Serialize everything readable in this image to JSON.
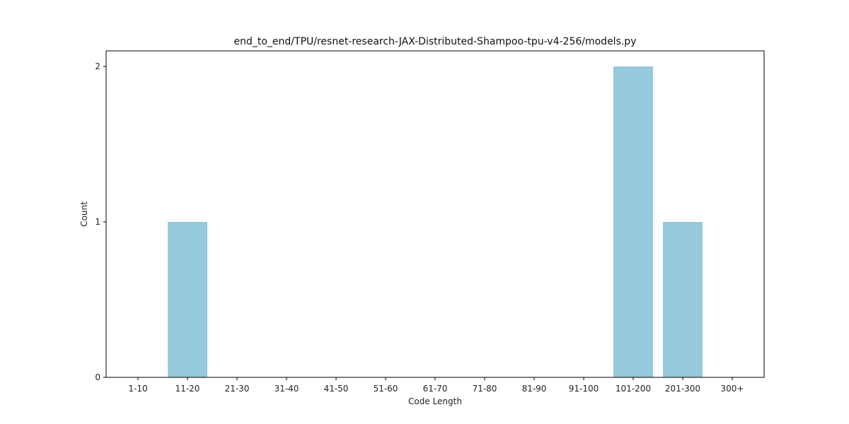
{
  "chart_data": {
    "type": "bar",
    "title": "end_to_end/TPU/resnet-research-JAX-Distributed-Shampoo-tpu-v4-256/models.py",
    "xlabel": "Code Length",
    "ylabel": "Count",
    "categories": [
      "1-10",
      "11-20",
      "21-30",
      "31-40",
      "41-50",
      "51-60",
      "61-70",
      "71-80",
      "81-90",
      "91-100",
      "101-200",
      "201-300",
      "300+"
    ],
    "values": [
      0,
      1,
      0,
      0,
      0,
      0,
      0,
      0,
      0,
      0,
      2,
      1,
      0
    ],
    "yticks": [
      0,
      1,
      2
    ],
    "ylim": [
      0,
      2.1
    ],
    "grid": false,
    "legend": "none",
    "bar_color": "#96c9dc"
  }
}
